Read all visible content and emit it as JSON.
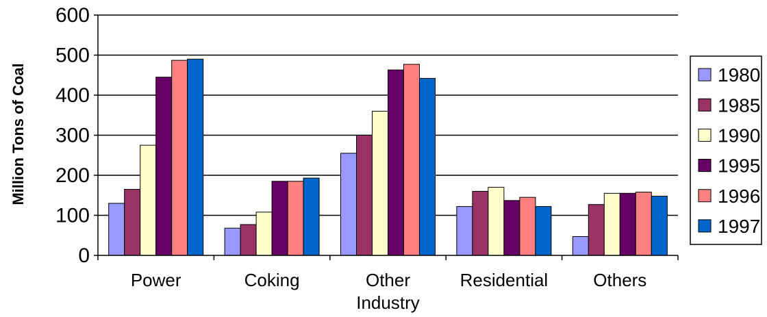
{
  "chart_data": {
    "type": "bar",
    "title": "",
    "xlabel": "",
    "ylabel": "Million Tons of Coal",
    "ylim": [
      0,
      600
    ],
    "yticks": [
      "0",
      "100",
      "200",
      "300",
      "400",
      "500",
      "600"
    ],
    "grid": true,
    "legend_position": "right",
    "categories": [
      "Power",
      "Coking",
      "Other Industry",
      "Residential",
      "Others"
    ],
    "category_lines": [
      [
        "Power"
      ],
      [
        "Coking"
      ],
      [
        "Other",
        "Industry"
      ],
      [
        "Residential"
      ],
      [
        "Others"
      ]
    ],
    "series": [
      {
        "name": "1980",
        "color": "#9999ff",
        "values": [
          130,
          68,
          255,
          122,
          47
        ]
      },
      {
        "name": "1985",
        "color": "#993366",
        "values": [
          165,
          77,
          300,
          160,
          127
        ]
      },
      {
        "name": "1990",
        "color": "#ffffcc",
        "values": [
          275,
          108,
          360,
          170,
          155
        ]
      },
      {
        "name": "1995",
        "color": "#660066",
        "values": [
          445,
          185,
          463,
          137,
          155
        ]
      },
      {
        "name": "1996",
        "color": "#ff8080",
        "values": [
          487,
          185,
          477,
          145,
          158
        ]
      },
      {
        "name": "1997",
        "color": "#0066cc",
        "values": [
          490,
          193,
          442,
          122,
          148
        ]
      }
    ]
  }
}
